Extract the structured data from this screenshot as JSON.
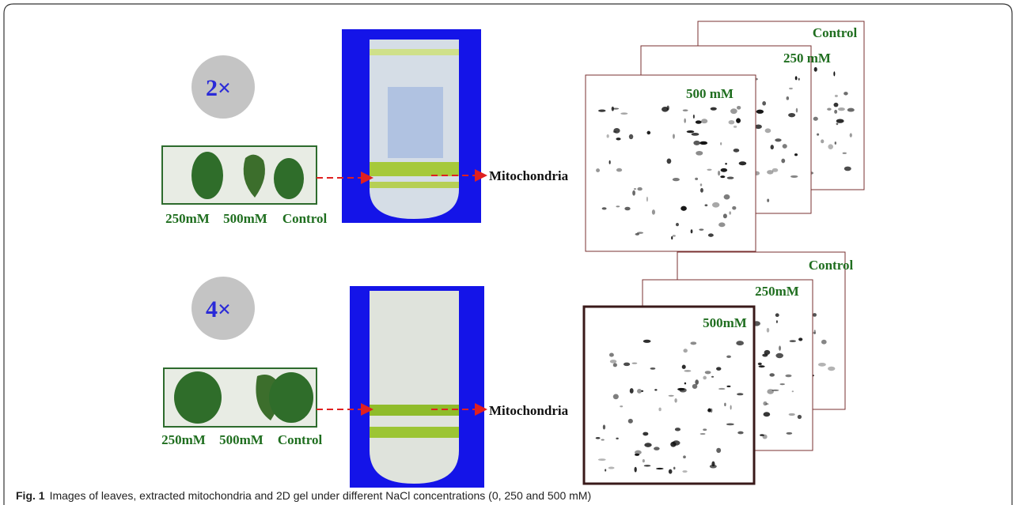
{
  "rows": [
    {
      "fold": "2×",
      "leaves": [
        "250mM",
        "500mM",
        "Control"
      ],
      "fraction": "Mitochondria",
      "gels": [
        "Control",
        "250 mM",
        "500 mM"
      ]
    },
    {
      "fold": "4×",
      "leaves": [
        "250mM",
        "500mM",
        "Control"
      ],
      "fraction": "Mitochondria",
      "gels": [
        "Control",
        "250mM",
        "500mM"
      ]
    }
  ],
  "caption": {
    "label": "Fig. 1",
    "text": "Images of leaves, extracted mitochondria and 2D gel under different NaCl concentrations (0, 250 and 500 mM)"
  }
}
